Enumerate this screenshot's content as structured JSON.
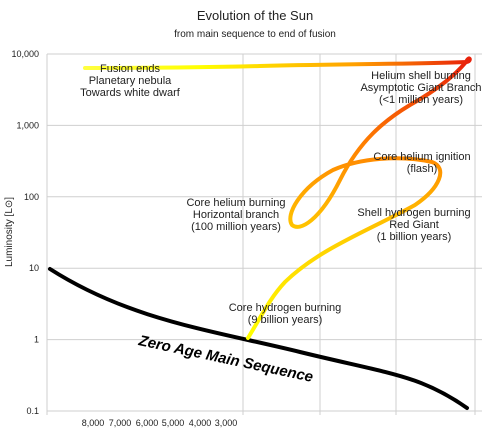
{
  "chart_data": {
    "type": "line",
    "title": "Evolution of the Sun",
    "subtitle": "from main sequence to end of fusion",
    "ylabel": "Luminosity [L⊙]",
    "y_scale": "log",
    "ylim": [
      0.1,
      10000
    ],
    "y_ticks": [
      "10,000",
      "1,000",
      "100",
      "10",
      "1",
      "0.1"
    ],
    "x_ticks": [
      "8,000",
      "7,000",
      "6,000",
      "5,000",
      "4,000",
      "3,000"
    ],
    "grid": "vertical and horizontal",
    "color_scale": [
      "#ffff00",
      "#ffd000",
      "#ff8000",
      "#e8200a"
    ],
    "series": [
      {
        "name": "Zero Age Main Sequence",
        "color": "#000000",
        "points": [
          [
            0,
            10
          ],
          [
            0.25,
            1.8
          ],
          [
            0.5,
            0.9
          ],
          [
            0.75,
            0.4
          ],
          [
            1.0,
            0.1
          ]
        ]
      },
      {
        "name": "",
        "points": [
          [
            0.45,
            1.0
          ],
          [
            0.5,
            3.0
          ],
          [
            0.55,
            10
          ],
          [
            0.7,
            20
          ],
          [
            0.8,
            40
          ],
          [
            0.87,
            100
          ],
          [
            0.88,
            250
          ],
          [
            0.75,
            200
          ],
          [
            0.6,
            100
          ],
          [
            0.57,
            40
          ],
          [
            0.6,
            80
          ],
          [
            0.7,
            400
          ],
          [
            0.85,
            1500
          ],
          [
            0.95,
            4000
          ],
          [
            1.0,
            7000
          ],
          [
            0.0,
            6000
          ]
        ]
      }
    ],
    "annotations": [
      {
        "lines": [
          "Fusion ends",
          "Planetary nebula",
          "Towards white dwarf"
        ]
      },
      {
        "lines": [
          "Helium shell burning",
          "Asymptotic Giant Branch",
          "(<1 million years)"
        ]
      },
      {
        "lines": [
          "Core helium ignition",
          "(flash)"
        ]
      },
      {
        "lines": [
          "Core helium burning",
          "Horizontal branch",
          "(100 million years)"
        ]
      },
      {
        "lines": [
          "Shell hydrogen burning",
          "Red Giant",
          "(1 billion years)"
        ]
      },
      {
        "lines": [
          "Core hydrogen burning",
          "(9 billion years)"
        ]
      }
    ],
    "zams_label": "Zero Age Main Sequence"
  }
}
